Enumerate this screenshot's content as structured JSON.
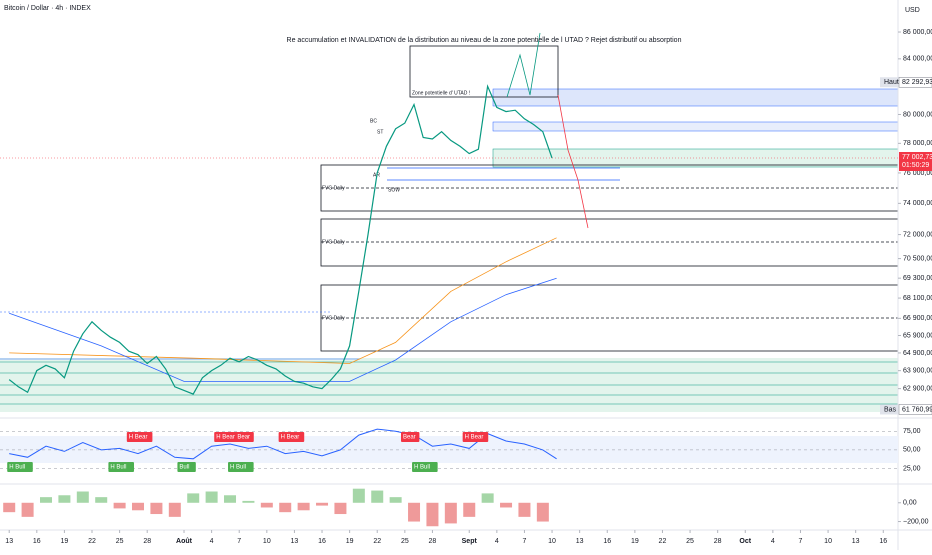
{
  "header": {
    "title": "Bitcoin / Dollar · 4h · INDEX",
    "currency": "USD"
  },
  "annotations": {
    "main": "Re accumulation et INVALIDATION de la distribution au niveau de la zone potentielle de l UTAD ? Rejet distributif ou absorption",
    "utad": "Zone potentielle d' UTAD !",
    "fvg": [
      "FVG Daily",
      "FVG Daily",
      "FVG Daily"
    ],
    "sow": "SOW",
    "st": "ST",
    "bc": "BC",
    "ar": "AR"
  },
  "price_chart": {
    "log_scale": true,
    "xlim": [
      -1,
      96.6
    ],
    "ylim": [
      61300,
      88450
    ],
    "color": "#089981",
    "yticks": [
      {
        "value": 86000,
        "label": "86 000,00"
      },
      {
        "value": 84000,
        "label": "84 000,00"
      },
      {
        "value": 80000,
        "label": "80 000,00"
      },
      {
        "value": 78000,
        "label": "78 000,00"
      },
      {
        "value": 76000,
        "label": "76 000,00"
      },
      {
        "value": 74000,
        "label": "74 000,00"
      },
      {
        "value": 72000,
        "label": "72 000,00"
      },
      {
        "value": 70500,
        "label": "70 500,00"
      },
      {
        "value": 69300,
        "label": "69 300,00"
      },
      {
        "value": 68100,
        "label": "68 100,00"
      },
      {
        "value": 66900,
        "label": "66 900,00"
      },
      {
        "value": 65900,
        "label": "65 900,00"
      },
      {
        "value": 64900,
        "label": "64 900,00"
      },
      {
        "value": 63900,
        "label": "63 900,00"
      },
      {
        "value": 62900,
        "label": "62 900,00"
      }
    ],
    "high": {
      "name": "Haut",
      "value": 82292.93,
      "label": "82 292,93"
    },
    "low": {
      "name": "Bas",
      "value": 61760.99,
      "label": "61 760,99"
    },
    "last": {
      "value": 77002.73,
      "label": "77 002,73",
      "countdown": "01:50:29"
    },
    "x": [
      0,
      1,
      2,
      3,
      4,
      5,
      6,
      7,
      8,
      9,
      10,
      11,
      12,
      13,
      14,
      15,
      16,
      17,
      18,
      19,
      20,
      21,
      22,
      23,
      24,
      25,
      26,
      27,
      28,
      29,
      30,
      31,
      32,
      33,
      34,
      35,
      36,
      37,
      38,
      39,
      40,
      41,
      42,
      43,
      44,
      45,
      46,
      47,
      48,
      49,
      50,
      51,
      52,
      53,
      54,
      55,
      56,
      57,
      58,
      59
    ],
    "values": [
      63400,
      63000,
      62700,
      63900,
      64200,
      64000,
      63500,
      65000,
      66000,
      66700,
      66200,
      65800,
      65500,
      65000,
      64800,
      64300,
      64700,
      64000,
      63000,
      62800,
      62600,
      63500,
      63900,
      64200,
      64600,
      64400,
      64700,
      64500,
      64200,
      64000,
      63600,
      63300,
      63200,
      63000,
      62900,
      63400,
      64000,
      65300,
      68500,
      72000,
      76000,
      77800,
      79000,
      79400,
      80700,
      78400,
      78300,
      78800,
      78200,
      77800,
      77300,
      77600,
      82000,
      80500,
      80200,
      80300,
      79700,
      79300,
      78800,
      77000
    ],
    "moving_averages": [
      {
        "color": "#f7931a",
        "x": [
          0,
          20,
          37,
          42,
          48,
          54,
          59.5
        ],
        "values": [
          64900,
          64600,
          64300,
          65500,
          68500,
          70300,
          71800
        ]
      },
      {
        "color": "#2962ff",
        "x": [
          0,
          10,
          19,
          37,
          42,
          48,
          54,
          59.5
        ],
        "values": [
          67200,
          65300,
          63300,
          63300,
          64500,
          66700,
          68300,
          69300
        ]
      }
    ]
  },
  "x_axis": {
    "ticks": [
      {
        "value": 0,
        "label": "13"
      },
      {
        "value": 3,
        "label": "16"
      },
      {
        "value": 6,
        "label": "19"
      },
      {
        "value": 9,
        "label": "22"
      },
      {
        "value": 12,
        "label": "25"
      },
      {
        "value": 15,
        "label": "28"
      },
      {
        "value": 19,
        "label": "Août"
      },
      {
        "value": 22,
        "label": "4"
      },
      {
        "value": 25,
        "label": "7"
      },
      {
        "value": 28,
        "label": "10"
      },
      {
        "value": 31,
        "label": "13"
      },
      {
        "value": 34,
        "label": "16"
      },
      {
        "value": 37,
        "label": "19"
      },
      {
        "value": 40,
        "label": "22"
      },
      {
        "value": 43,
        "label": "25"
      },
      {
        "value": 46,
        "label": "28"
      },
      {
        "value": 50,
        "label": "Sept"
      },
      {
        "value": 53,
        "label": "4"
      },
      {
        "value": 56,
        "label": "7"
      },
      {
        "value": 59,
        "label": "10"
      },
      {
        "value": 62,
        "label": "13"
      },
      {
        "value": 65,
        "label": "16"
      },
      {
        "value": 68,
        "label": "19"
      },
      {
        "value": 71,
        "label": "22"
      },
      {
        "value": 74,
        "label": "25"
      },
      {
        "value": 77,
        "label": "28"
      },
      {
        "value": 80,
        "label": "Oct"
      },
      {
        "value": 83,
        "label": "4"
      },
      {
        "value": 86,
        "label": "7"
      },
      {
        "value": 89,
        "label": "10"
      },
      {
        "value": 92,
        "label": "13"
      },
      {
        "value": 95,
        "label": "16"
      }
    ]
  },
  "rsi": {
    "ylim": [
      4,
      93
    ],
    "color": "#2962ff",
    "yticks": [
      {
        "value": 75,
        "label": "75,00"
      },
      {
        "value": 50,
        "label": "50,00"
      },
      {
        "value": 25,
        "label": "25,00"
      }
    ],
    "x": [
      0,
      2,
      4,
      6,
      8,
      10,
      12,
      14,
      16,
      18,
      20,
      22,
      24,
      26,
      28,
      30,
      32,
      34,
      36,
      38,
      40,
      42,
      44,
      46,
      48,
      50,
      52,
      54,
      56,
      58,
      59.5
    ],
    "values": [
      45,
      40,
      55,
      48,
      60,
      50,
      52,
      45,
      55,
      40,
      38,
      55,
      58,
      52,
      55,
      45,
      48,
      42,
      50,
      70,
      78,
      75,
      70,
      55,
      58,
      52,
      72,
      62,
      58,
      50,
      38
    ],
    "labels": [
      {
        "text": "H Bull",
        "x": 0,
        "kind": "bull"
      },
      {
        "text": "H Bear",
        "x": 13,
        "kind": "bear"
      },
      {
        "text": "H Bull",
        "x": 11,
        "kind": "bull"
      },
      {
        "text": "Bull",
        "x": 18.5,
        "kind": "bull"
      },
      {
        "text": "H Bear",
        "x": 22.5,
        "kind": "bear"
      },
      {
        "text": "Bear",
        "x": 24.8,
        "kind": "bear"
      },
      {
        "text": "H Bull",
        "x": 24,
        "kind": "bull"
      },
      {
        "text": "H Bear",
        "x": 29.5,
        "kind": "bear"
      },
      {
        "text": "Bear",
        "x": 42.8,
        "kind": "bear"
      },
      {
        "text": "H Bull",
        "x": 44,
        "kind": "bull"
      },
      {
        "text": "H Bear",
        "x": 49.5,
        "kind": "bear"
      }
    ]
  },
  "macd": {
    "ylim": [
      -290,
      200
    ],
    "yticks": [
      {
        "value": 0,
        "label": "0,00"
      },
      {
        "value": -200,
        "label": "−200,00"
      }
    ],
    "x": [
      0,
      2,
      4,
      6,
      8,
      10,
      12,
      14,
      16,
      18,
      20,
      22,
      24,
      26,
      28,
      30,
      32,
      34,
      36,
      38,
      40,
      42,
      44,
      46,
      48,
      50,
      52,
      54,
      56,
      58
    ],
    "values": [
      -100,
      -150,
      60,
      80,
      120,
      60,
      -60,
      -80,
      -120,
      -150,
      100,
      120,
      80,
      20,
      -50,
      -100,
      -80,
      -30,
      -120,
      150,
      130,
      60,
      -200,
      -250,
      -220,
      -150,
      100,
      -50,
      -150,
      -200
    ]
  }
}
